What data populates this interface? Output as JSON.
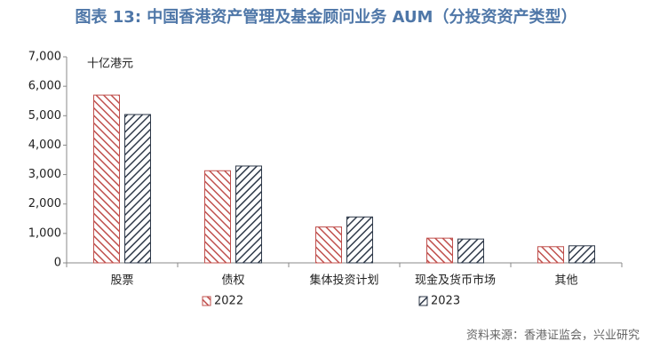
{
  "chart_data": {
    "type": "bar",
    "title": "图表 13: 中国香港资产管理及基金顾问业务 AUM（分投资资产类型）",
    "y_label": "十亿港元",
    "source": "资料来源：香港证监会，兴业研究",
    "categories": [
      "股票",
      "债权",
      "集体投资计划",
      "现金及货币市场",
      "其他"
    ],
    "series": [
      {
        "name": "2022",
        "color": "#c0504d",
        "values": [
          5700,
          3130,
          1220,
          840,
          550
        ]
      },
      {
        "name": "2023",
        "color": "#2f3a4a",
        "values": [
          5040,
          3290,
          1560,
          810,
          580
        ]
      }
    ],
    "ylim": [
      0,
      7000
    ],
    "yticks": [
      0,
      {
        "value": 1000,
        "label": "1,000"
      },
      {
        "value": 2000,
        "label": "2,000"
      },
      {
        "value": 3000,
        "label": "3,000"
      },
      {
        "value": 4000,
        "label": "4,000"
      },
      {
        "value": 5000,
        "label": "5,000"
      },
      {
        "value": 6000,
        "label": "6,000"
      },
      {
        "value": 7000,
        "label": "7,000"
      }
    ],
    "grid": false
  }
}
